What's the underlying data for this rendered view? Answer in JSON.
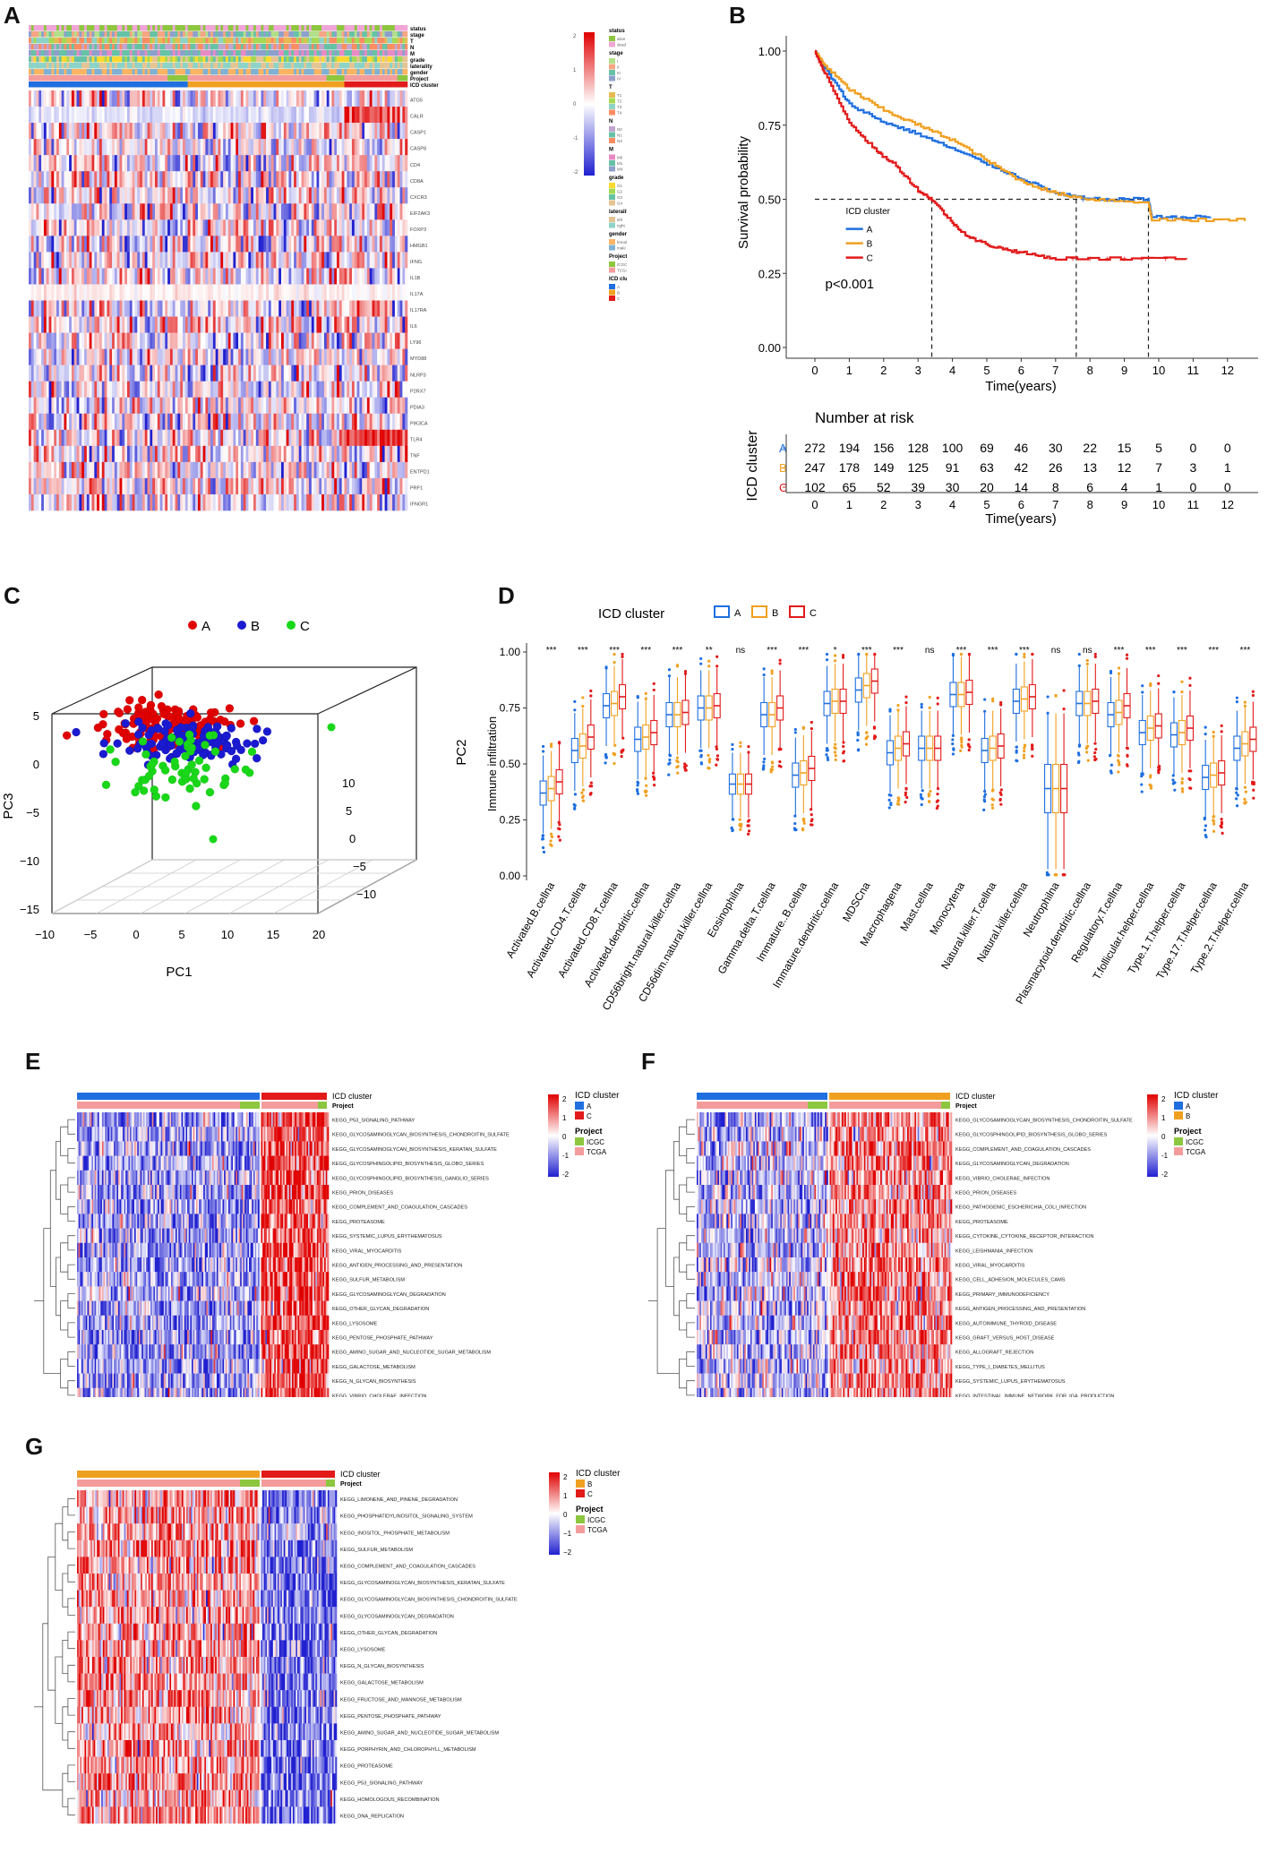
{
  "panels": {
    "a": "A",
    "b": "B",
    "c": "C",
    "d": "D",
    "e": "E",
    "f": "F",
    "g": "G"
  },
  "colors": {
    "A": "#1f6fe0",
    "B": "#f0a020",
    "C": "#e21a1a",
    "icgc": "#8dc63f",
    "tcga": "#f49c9c",
    "heat_hi": "#e00000",
    "heat_mid": "#ffffff",
    "heat_lo": "#2020d0",
    "scatterA": "#e00000",
    "scatterB": "#1a1ad0",
    "scatterC": "#19d719"
  },
  "panelA": {
    "row_annotations": [
      "status",
      "stage",
      "T",
      "N",
      "M",
      "grade",
      "laterality",
      "gender",
      "Project",
      "ICD cluster"
    ],
    "genes": [
      "ATG5",
      "CALR",
      "CASP1",
      "CASP8",
      "CD4",
      "CD8A",
      "CXCR3",
      "EIF2AK3",
      "FOXP3",
      "HMGB1",
      "IFNG",
      "IL1B",
      "IL17A",
      "IL17RA",
      "IL6",
      "LY96",
      "MYD88",
      "NLRP3",
      "P2RX7",
      "PDIA3",
      "PIK3CA",
      "TLR4",
      "TNF",
      "ENTPD1",
      "PRF1",
      "IFNGR1"
    ],
    "scale_ticks": [
      "2",
      "1",
      "0",
      "-1",
      "-2"
    ],
    "legend": [
      {
        "title": "status",
        "items": [
          "alive",
          "dead"
        ]
      },
      {
        "title": "stage",
        "items": [
          "I",
          "II",
          "III",
          "IV"
        ]
      },
      {
        "title": "T",
        "items": [
          "T1",
          "T2",
          "T3",
          "T4"
        ]
      },
      {
        "title": "N",
        "items": [
          "N0",
          "N1",
          "NX"
        ]
      },
      {
        "title": "M",
        "items": [
          "M0",
          "M1",
          "MX"
        ]
      },
      {
        "title": "grade",
        "items": [
          "G1",
          "G2",
          "G3",
          "G4"
        ]
      },
      {
        "title": "laterality",
        "items": [
          "left",
          "right"
        ]
      },
      {
        "title": "gender",
        "items": [
          "female",
          "male"
        ]
      },
      {
        "title": "Project",
        "items": [
          "ICGC",
          "TCGA"
        ]
      },
      {
        "title": "ICD cluster",
        "items": [
          "A",
          "B",
          "C"
        ]
      }
    ]
  },
  "panelB": {
    "ylabel": "Survival probability",
    "xlabel": "Time(years)",
    "yticks": [
      "0.00",
      "0.25",
      "0.50",
      "0.75",
      "1.00"
    ],
    "xticks": [
      "0",
      "1",
      "2",
      "3",
      "4",
      "5",
      "6",
      "7",
      "8",
      "9",
      "10",
      "11",
      "12"
    ],
    "legend_title": "ICD cluster",
    "legend_items": [
      "A",
      "B",
      "C"
    ],
    "pvalue": "p<0.001",
    "risk_title": "Number at risk",
    "risk_ylabel": "ICD cluster",
    "risk_rows": [
      {
        "name": "A",
        "values": [
          "272",
          "194",
          "156",
          "128",
          "100",
          "69",
          "46",
          "30",
          "22",
          "15",
          "5",
          "0",
          "0"
        ]
      },
      {
        "name": "B",
        "values": [
          "247",
          "178",
          "149",
          "125",
          "91",
          "63",
          "42",
          "26",
          "13",
          "12",
          "7",
          "3",
          "1"
        ]
      },
      {
        "name": "C",
        "values": [
          "102",
          "65",
          "52",
          "39",
          "30",
          "20",
          "14",
          "8",
          "6",
          "4",
          "1",
          "0",
          "0"
        ]
      }
    ],
    "median_years": {
      "A": 9.7,
      "B": 9.7,
      "C": 3.4
    },
    "second_median_line": 7.6
  },
  "panelC": {
    "legend": [
      "A",
      "B",
      "C"
    ],
    "pc1_ticks": [
      "−10",
      "−5",
      "0",
      "5",
      "10",
      "15",
      "20"
    ],
    "pc3_ticks": [
      "5",
      "0",
      "−5",
      "−10",
      "−15"
    ],
    "pc2_ticks": [
      "−10",
      "−5",
      "0",
      "5",
      "10"
    ],
    "xlabel": "PC1",
    "ylabel": "PC3",
    "zlabel": "PC2"
  },
  "chart_data": {
    "type": "box",
    "title": "",
    "legend_title": "ICD cluster",
    "series_names": [
      "A",
      "B",
      "C"
    ],
    "ylabel": "Immune infiltration",
    "ylim": [
      0,
      1
    ],
    "yticks": [
      "0.00",
      "0.25",
      "0.50",
      "0.75",
      "1.00"
    ],
    "categories": [
      "Activated.B.cellna",
      "Activated.CD4.T.cellna",
      "Activated.CD8.T.cellna",
      "Activated.dendritic.cellna",
      "CD56bright.natural.killer.cellna",
      "CD56dim.natural.killer.cellna",
      "Eosinophilna",
      "Gamma.delta.T.cellna",
      "Immature..B.cellna",
      "Immature.dendritic.cellna",
      "MDSCna",
      "Macrophagena",
      "Mast.cellna",
      "Monocytena",
      "Natural.killer.T.cellna",
      "Natural.killer.cellna",
      "Neutrophilna",
      "Plasmacytoid.dendritic.cellna",
      "Regulatory.T.cellna",
      "T.follicular.helper.cellna",
      "Type.1.T.helper.cellna",
      "Type.17.T.helper.cellna",
      "Type.2.T.helper.cellna"
    ],
    "significance": [
      "***",
      "***",
      "***",
      "***",
      "***",
      "**",
      "ns",
      "***",
      "***",
      "*",
      "***",
      "***",
      "ns",
      "***",
      "***",
      "***",
      "ns",
      "ns",
      "***",
      "***",
      "***",
      "***",
      "***"
    ],
    "medians": {
      "A": [
        0.37,
        0.56,
        0.76,
        0.61,
        0.72,
        0.75,
        0.41,
        0.72,
        0.45,
        0.77,
        0.83,
        0.55,
        0.57,
        0.81,
        0.56,
        0.78,
        0.39,
        0.77,
        0.72,
        0.64,
        0.63,
        0.44,
        0.57
      ],
      "B": [
        0.39,
        0.58,
        0.77,
        0.62,
        0.72,
        0.75,
        0.41,
        0.72,
        0.46,
        0.78,
        0.85,
        0.57,
        0.57,
        0.81,
        0.57,
        0.79,
        0.39,
        0.77,
        0.73,
        0.66,
        0.64,
        0.45,
        0.59
      ],
      "C": [
        0.42,
        0.62,
        0.8,
        0.64,
        0.73,
        0.76,
        0.41,
        0.75,
        0.48,
        0.78,
        0.87,
        0.59,
        0.57,
        0.82,
        0.58,
        0.8,
        0.39,
        0.78,
        0.76,
        0.67,
        0.66,
        0.46,
        0.61
      ]
    }
  },
  "panelE": {
    "legend_title": "ICD cluster",
    "legend_items": [
      "A",
      "C"
    ],
    "project_title": "Project",
    "project_items": [
      "ICGC",
      "TCGA"
    ],
    "scale_ticks": [
      "2",
      "1",
      "0",
      "-1",
      "-2"
    ],
    "pathways": [
      "KEGG_P53_SIGNALING_PATHWAY",
      "KEGG_GLYCOSAMINOGLYCAN_BIOSYNTHESIS_CHONDROITIN_SULFATE",
      "KEGG_GLYCOSAMINOGLYCAN_BIOSYNTHESIS_KERATAN_SULFATE",
      "KEGG_GLYCOSPHINGOLIPID_BIOSYNTHESIS_GLOBO_SERIES",
      "KEGG_GLYCOSPHINGOLIPID_BIOSYNTHESIS_GANGLIO_SERIES",
      "KEGG_PRION_DISEASES",
      "KEGG_COMPLEMENT_AND_COAGULATION_CASCADES",
      "KEGG_PROTEASOME",
      "KEGG_SYSTEMIC_LUPUS_ERYTHEMATOSUS",
      "KEGG_VIRAL_MYOCARDITIS",
      "KEGG_ANTIGEN_PROCESSING_AND_PRESENTATION",
      "KEGG_SULFUR_METABOLISM",
      "KEGG_GLYCOSAMINOGLYCAN_DEGRADATION",
      "KEGG_OTHER_GLYCAN_DEGRADATION",
      "KEGG_LYSOSOME",
      "KEGG_PENTOSE_PHOSPHATE_PATHWAY",
      "KEGG_AMINO_SUGAR_AND_NUCLEOTIDE_SUGAR_METABOLISM",
      "KEGG_GALACTOSE_METABOLISM",
      "KEGG_N_GLYCAN_BIOSYNTHESIS",
      "KEGG_VIBRIO_CHOLERAE_INFECTION"
    ]
  },
  "panelF": {
    "legend_title": "ICD cluster",
    "legend_items": [
      "A",
      "B"
    ],
    "project_title": "Project",
    "project_items": [
      "ICGC",
      "TCGA"
    ],
    "scale_ticks": [
      "2",
      "1",
      "0",
      "-1",
      "-2"
    ],
    "pathways": [
      "KEGG_GLYCOSAMINOGLYCAN_BIOSYNTHESIS_CHONDROITIN_SULFATE",
      "KEGG_GLYCOSPHINGOLIPID_BIOSYNTHESIS_GLOBO_SERIES",
      "KEGG_COMPLEMENT_AND_COAGULATION_CASCADES",
      "KEGG_GLYCOSAMINOGLYCAN_DEGRADATION",
      "KEGG_VIBRIO_CHOLERAE_INFECTION",
      "KEGG_PRION_DISEASES",
      "KEGG_PATHOGENIC_ESCHERICHIA_COLI_INFECTION",
      "KEGG_PROTEASOME",
      "KEGG_CYTOKINE_CYTOKINE_RECEPTOR_INTERACTION",
      "KEGG_LEISHMANIA_INFECTION",
      "KEGG_VIRAL_MYOCARDITIS",
      "KEGG_CELL_ADHESION_MOLECULES_CAMS",
      "KEGG_PRIMARY_IMMUNODEFICIENCY",
      "KEGG_ANTIGEN_PROCESSING_AND_PRESENTATION",
      "KEGG_AUTOIMMUNE_THYROID_DISEASE",
      "KEGG_GRAFT_VERSUS_HOST_DISEASE",
      "KEGG_ALLOGRAFT_REJECTION",
      "KEGG_TYPE_I_DIABETES_MELLITUS",
      "KEGG_SYSTEMIC_LUPUS_ERYTHEMATOSUS",
      "KEGG_INTESTINAL_IMMUNE_NETWORK_FOR_IGA_PRODUCTION"
    ]
  },
  "panelG": {
    "legend_title": "ICD cluster",
    "legend_items": [
      "B",
      "C"
    ],
    "project_title": "Project",
    "project_items": [
      "ICGC",
      "TCGA"
    ],
    "scale_ticks": [
      "2",
      "1",
      "0",
      "−1",
      "−2"
    ],
    "pathways": [
      "KEGG_LIMONENE_AND_PINENE_DEGRADATION",
      "KEGG_PHOSPHATIDYLINOSITOL_SIGNALING_SYSTEM",
      "KEGG_INOSITOL_PHOSPHATE_METABOLISM",
      "KEGG_SULFUR_METABOLISM",
      "KEGG_COMPLEMENT_AND_COAGULATION_CASCADES",
      "KEGG_GLYCOSAMINOGLYCAN_BIOSYNTHESIS_KERATAN_SULFATE",
      "KEGG_GLYCOSAMINOGLYCAN_BIOSYNTHESIS_CHONDROITIN_SULFATE",
      "KEGG_GLYCOSAMINOGLYCAN_DEGRADATION",
      "KEGG_OTHER_GLYCAN_DEGRADATION",
      "KEGG_LYSOSOME",
      "KEGG_N_GLYCAN_BIOSYNTHESIS",
      "KEGG_GALACTOSE_METABOLISM",
      "KEGG_FRUCTOSE_AND_MANNOSE_METABOLISM",
      "KEGG_PENTOSE_PHOSPHATE_PATHWAY",
      "KEGG_AMINO_SUGAR_AND_NUCLEOTIDE_SUGAR_METABOLISM",
      "KEGG_PORPHYRIN_AND_CHLOROPHYLL_METABOLISM",
      "KEGG_PROTEASOME",
      "KEGG_P53_SIGNALING_PATHWAY",
      "KEGG_HOMOLOGOUS_RECOMBINATION",
      "KEGG_DNA_REPLICATION"
    ]
  }
}
